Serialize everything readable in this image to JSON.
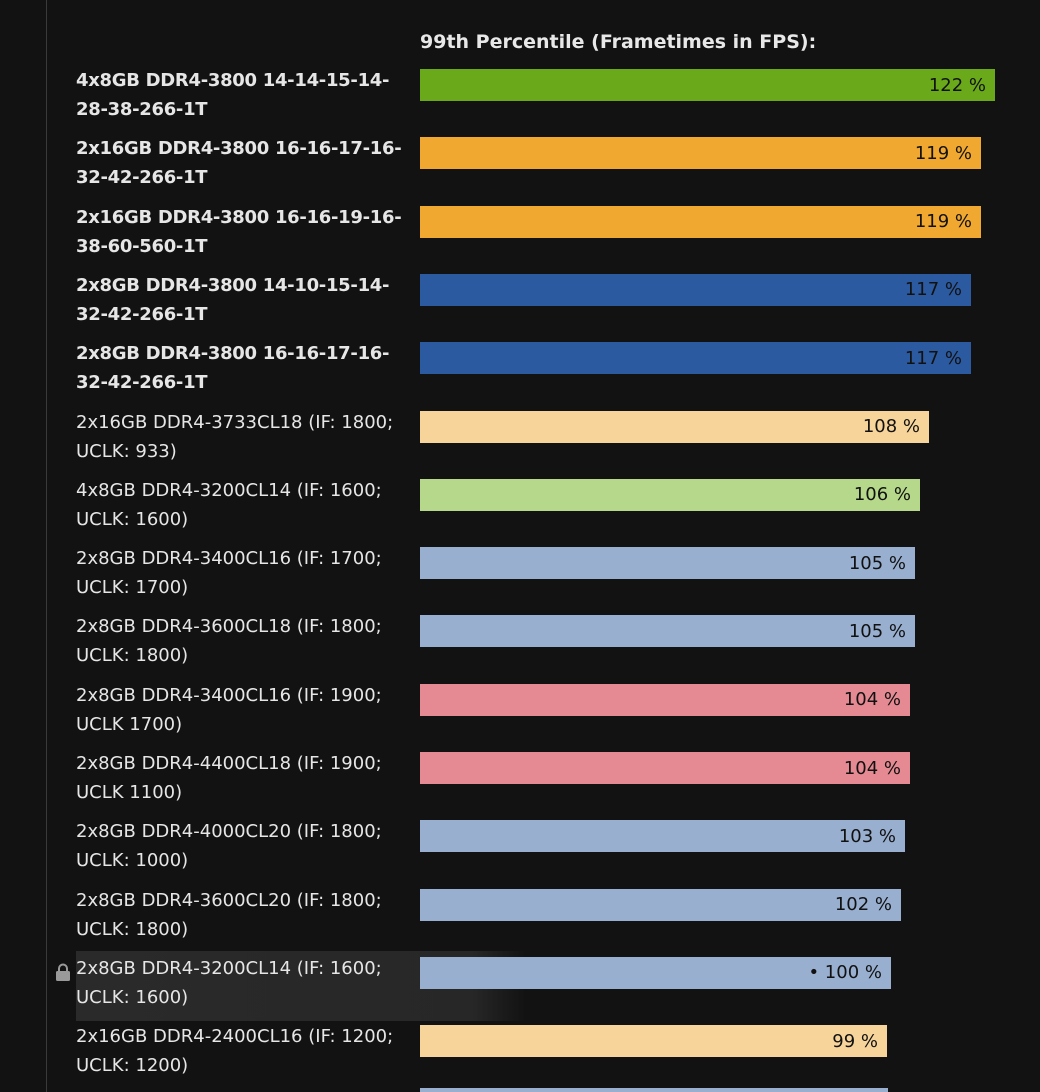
{
  "chart_data": {
    "type": "bar",
    "orientation": "horizontal",
    "title": "99th Percentile (Frametimes in FPS):",
    "unit": "%",
    "xlim": [
      0,
      122
    ],
    "rows": [
      {
        "label": "4x8GB DDR4-3800 14-14-15-14-28-38-266-1T",
        "value": 122,
        "value_label": "122 %",
        "color": "#6aaa1a",
        "bold": true
      },
      {
        "label": "2x16GB DDR4-3800 16-16-17-16-32-42-266-1T",
        "value": 119,
        "value_label": "119 %",
        "color": "#f0a830",
        "bold": true
      },
      {
        "label": "2x16GB DDR4-3800 16-16-19-16-38-60-560-1T",
        "value": 119,
        "value_label": "119 %",
        "color": "#f0a830",
        "bold": true
      },
      {
        "label": "2x8GB DDR4-3800 14-10-15-14-32-42-266-1T",
        "value": 117,
        "value_label": "117 %",
        "color": "#2c5aa0",
        "bold": true
      },
      {
        "label": "2x8GB DDR4-3800 16-16-17-16-32-42-266-1T",
        "value": 117,
        "value_label": "117 %",
        "color": "#2c5aa0",
        "bold": true
      },
      {
        "label": "2x16GB DDR4-3733CL18 (IF: 1800; UCLK: 933)",
        "value": 108,
        "value_label": "108 %",
        "color": "#f7d49a",
        "bold": false
      },
      {
        "label": "4x8GB DDR4-3200CL14 (IF: 1600; UCLK: 1600)",
        "value": 106,
        "value_label": "106 %",
        "color": "#b5d88a",
        "bold": false
      },
      {
        "label": "2x8GB DDR4-3400CL16 (IF: 1700; UCLK: 1700)",
        "value": 105,
        "value_label": "105 %",
        "color": "#98afd0",
        "bold": false
      },
      {
        "label": "2x8GB DDR4-3600CL18 (IF: 1800; UCLK: 1800)",
        "value": 105,
        "value_label": "105 %",
        "color": "#98afd0",
        "bold": false
      },
      {
        "label": "2x8GB DDR4-3400CL16 (IF: 1900; UCLK 1700)",
        "value": 104,
        "value_label": "104 %",
        "color": "#e58a92",
        "bold": false
      },
      {
        "label": "2x8GB DDR4-4400CL18 (IF: 1900; UCLK 1100)",
        "value": 104,
        "value_label": "104 %",
        "color": "#e58a92",
        "bold": false
      },
      {
        "label": "2x8GB DDR4-4000CL20 (IF: 1800; UCLK: 1000)",
        "value": 103,
        "value_label": "103 %",
        "color": "#98afd0",
        "bold": false
      },
      {
        "label": "2x8GB DDR4-3600CL20 (IF: 1800; UCLK: 1800)",
        "value": 102,
        "value_label": "102 %",
        "color": "#98afd0",
        "bold": false
      },
      {
        "label": "2x8GB DDR4-3200CL14 (IF: 1600; UCLK: 1600)",
        "value": 100,
        "value_label": "• 100 %",
        "color": "#98afd0",
        "bold": false,
        "reference": true,
        "icon": "lock-icon"
      },
      {
        "label": "2x16GB DDR4-2400CL16 (IF: 1200; UCLK: 1200)",
        "value": 99,
        "value_label": "99 %",
        "color": "#f7d49a",
        "bold": false
      }
    ],
    "partial_row_color": "#98afd0"
  }
}
